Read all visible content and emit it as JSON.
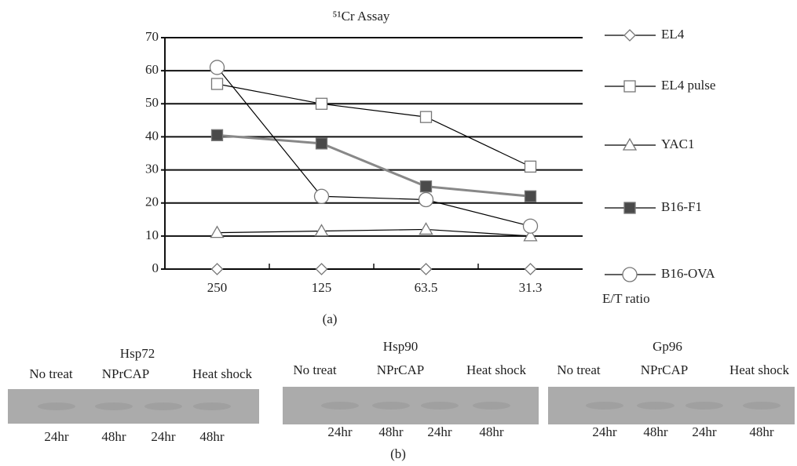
{
  "chart_data": {
    "type": "line",
    "title": "⁵¹Cr Assay",
    "x_label": "E/T ratio",
    "caption": "(a)",
    "categories": [
      "250",
      "125",
      "63.5",
      "31.3"
    ],
    "series": [
      {
        "name": "EL4",
        "marker": "diamond",
        "color": "#000000",
        "marker_fill": "#ffffff",
        "values": [
          0,
          0,
          0,
          0
        ]
      },
      {
        "name": "EL4 pulse",
        "marker": "square",
        "color": "#000000",
        "marker_fill": "#ffffff",
        "values": [
          56,
          50,
          46,
          31
        ]
      },
      {
        "name": "YAC1",
        "marker": "triangle",
        "color": "#000000",
        "marker_fill": "#ffffff",
        "values": [
          11,
          11.5,
          12,
          10
        ]
      },
      {
        "name": "B16-F1",
        "marker": "square",
        "color": "#888888",
        "marker_fill": "#4a4a4a",
        "values": [
          40.5,
          38,
          25,
          22
        ]
      },
      {
        "name": "B16-OVA",
        "marker": "circle",
        "color": "#000000",
        "marker_fill": "#ffffff",
        "values": [
          61,
          22,
          21,
          13
        ]
      }
    ],
    "ylim": [
      0,
      70
    ],
    "yticks": [
      0,
      10,
      20,
      30,
      40,
      50,
      60,
      70
    ],
    "grid": true,
    "legend": "right"
  },
  "blots": {
    "caption": "(b)",
    "panels": [
      {
        "title": "Hsp72",
        "treatments": [
          "No treat",
          "NPrCAP",
          "Heat shock"
        ],
        "times": [
          "24hr",
          "48hr",
          "24hr",
          "48hr"
        ]
      },
      {
        "title": "Hsp90",
        "treatments": [
          "No treat",
          "NPrCAP",
          "Heat shock"
        ],
        "times": [
          "24hr",
          "48hr",
          "24hr",
          "48hr"
        ]
      },
      {
        "title": "Gp96",
        "treatments": [
          "No treat",
          "NPrCAP",
          "Heat shock"
        ],
        "times": [
          "24hr",
          "48hr",
          "24hr",
          "48hr"
        ]
      }
    ]
  }
}
